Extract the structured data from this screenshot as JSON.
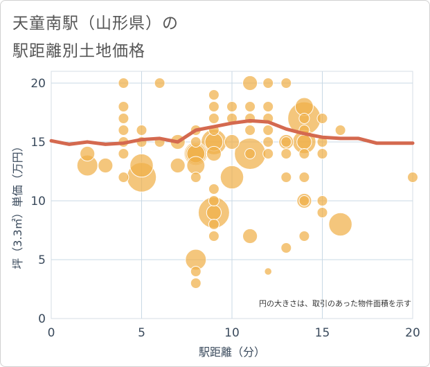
{
  "header": {
    "title_line1": "天童南駅（山形県）の",
    "title_line2": "駅距離別土地価格"
  },
  "chart_data": {
    "type": "scatter",
    "xlabel": "駅距離（分）",
    "ylabel": "坪（3.3㎡）単価（万円）",
    "xlim": [
      0,
      20
    ],
    "ylim": [
      0,
      21
    ],
    "x_ticks": [
      "0",
      "5",
      "10",
      "15",
      "20"
    ],
    "y_ticks": [
      "0",
      "5",
      "10",
      "15",
      "20"
    ],
    "grid": true,
    "note": "円の大きさは、取引のあった物件面積を示す",
    "colors": {
      "bubble": "#f0b04a",
      "bubble_edge": "#ffffff",
      "trend": "#d4694f",
      "grid": "#c8d8e4"
    },
    "points": [
      {
        "x": 4,
        "y": 20,
        "s": 1
      },
      {
        "x": 6,
        "y": 20,
        "s": 1
      },
      {
        "x": 4,
        "y": 18,
        "s": 1
      },
      {
        "x": 4,
        "y": 17,
        "s": 1
      },
      {
        "x": 4,
        "y": 16,
        "s": 1
      },
      {
        "x": 4,
        "y": 15,
        "s": 1
      },
      {
        "x": 4,
        "y": 14,
        "s": 1
      },
      {
        "x": 4,
        "y": 12,
        "s": 1
      },
      {
        "x": 5,
        "y": 16,
        "s": 1
      },
      {
        "x": 5,
        "y": 15,
        "s": 1
      },
      {
        "x": 2,
        "y": 14,
        "s": 2
      },
      {
        "x": 2,
        "y": 13,
        "s": 4
      },
      {
        "x": 3,
        "y": 13,
        "s": 2
      },
      {
        "x": 5,
        "y": 13,
        "s": 5
      },
      {
        "x": 5,
        "y": 12,
        "s": 8
      },
      {
        "x": 6,
        "y": 15,
        "s": 1
      },
      {
        "x": 7,
        "y": 15,
        "s": 2
      },
      {
        "x": 7,
        "y": 13,
        "s": 2
      },
      {
        "x": 8,
        "y": 16,
        "s": 1
      },
      {
        "x": 8,
        "y": 15,
        "s": 1
      },
      {
        "x": 8,
        "y": 14,
        "s": 5
      },
      {
        "x": 8,
        "y": 14,
        "s": 4
      },
      {
        "x": 8,
        "y": 14,
        "s": 3
      },
      {
        "x": 8,
        "y": 13,
        "s": 3
      },
      {
        "x": 8,
        "y": 12,
        "s": 1
      },
      {
        "x": 8,
        "y": 5,
        "s": 4
      },
      {
        "x": 8,
        "y": 4,
        "s": 1
      },
      {
        "x": 8,
        "y": 3,
        "s": 1
      },
      {
        "x": 9,
        "y": 19,
        "s": 1
      },
      {
        "x": 9,
        "y": 18,
        "s": 1
      },
      {
        "x": 9,
        "y": 17,
        "s": 1
      },
      {
        "x": 9,
        "y": 16,
        "s": 1
      },
      {
        "x": 9,
        "y": 15,
        "s": 6
      },
      {
        "x": 9,
        "y": 15,
        "s": 3
      },
      {
        "x": 9,
        "y": 14,
        "s": 2
      },
      {
        "x": 9,
        "y": 11,
        "s": 1
      },
      {
        "x": 9,
        "y": 10,
        "s": 1
      },
      {
        "x": 9,
        "y": 9,
        "s": 9
      },
      {
        "x": 9,
        "y": 9,
        "s": 2
      },
      {
        "x": 9,
        "y": 8,
        "s": 1
      },
      {
        "x": 9,
        "y": 7,
        "s": 1
      },
      {
        "x": 10,
        "y": 18,
        "s": 1
      },
      {
        "x": 10,
        "y": 17,
        "s": 1
      },
      {
        "x": 10,
        "y": 15,
        "s": 2
      },
      {
        "x": 10,
        "y": 12,
        "s": 5
      },
      {
        "x": 11,
        "y": 20,
        "s": 2
      },
      {
        "x": 11,
        "y": 18,
        "s": 1
      },
      {
        "x": 11,
        "y": 17,
        "s": 1
      },
      {
        "x": 11,
        "y": 16,
        "s": 1
      },
      {
        "x": 11,
        "y": 14,
        "s": 9
      },
      {
        "x": 11,
        "y": 14,
        "s": 1
      },
      {
        "x": 11,
        "y": 7,
        "s": 2
      },
      {
        "x": 12,
        "y": 20,
        "s": 1
      },
      {
        "x": 12,
        "y": 18,
        "s": 1
      },
      {
        "x": 12,
        "y": 17,
        "s": 1
      },
      {
        "x": 12,
        "y": 16,
        "s": 1
      },
      {
        "x": 12,
        "y": 15,
        "s": 1
      },
      {
        "x": 12,
        "y": 14,
        "s": 1
      },
      {
        "x": 12,
        "y": 4,
        "s": 0.5
      },
      {
        "x": 13,
        "y": 20,
        "s": 1
      },
      {
        "x": 13,
        "y": 15,
        "s": 2
      },
      {
        "x": 13,
        "y": 15,
        "s": 1
      },
      {
        "x": 13,
        "y": 14,
        "s": 1
      },
      {
        "x": 13,
        "y": 12,
        "s": 1
      },
      {
        "x": 13,
        "y": 6,
        "s": 1
      },
      {
        "x": 14,
        "y": 18,
        "s": 3
      },
      {
        "x": 14,
        "y": 17,
        "s": 10
      },
      {
        "x": 14,
        "y": 17,
        "s": 1
      },
      {
        "x": 14,
        "y": 16,
        "s": 1
      },
      {
        "x": 14,
        "y": 15,
        "s": 5
      },
      {
        "x": 14,
        "y": 15,
        "s": 2
      },
      {
        "x": 14,
        "y": 14,
        "s": 1
      },
      {
        "x": 14,
        "y": 12,
        "s": 1
      },
      {
        "x": 14,
        "y": 10,
        "s": 2
      },
      {
        "x": 14,
        "y": 10,
        "s": 1
      },
      {
        "x": 14,
        "y": 7,
        "s": 1
      },
      {
        "x": 15,
        "y": 17,
        "s": 1
      },
      {
        "x": 15,
        "y": 15,
        "s": 1
      },
      {
        "x": 15,
        "y": 14,
        "s": 1
      },
      {
        "x": 15,
        "y": 10,
        "s": 1
      },
      {
        "x": 15,
        "y": 9,
        "s": 1
      },
      {
        "x": 16,
        "y": 16,
        "s": 1
      },
      {
        "x": 16,
        "y": 8,
        "s": 5
      },
      {
        "x": 20,
        "y": 12,
        "s": 1
      }
    ],
    "trend": {
      "name": "",
      "x": [
        0,
        1,
        2,
        3,
        4,
        5,
        6,
        7,
        8,
        9,
        10,
        11,
        12,
        13,
        14,
        15,
        16,
        17,
        18,
        19,
        20
      ],
      "y": [
        15.1,
        14.8,
        15.0,
        14.8,
        14.9,
        15.2,
        15.3,
        15.0,
        16.0,
        16.3,
        16.6,
        16.8,
        16.7,
        16.1,
        15.7,
        15.4,
        15.3,
        15.3,
        14.9,
        14.9,
        14.9
      ]
    }
  }
}
